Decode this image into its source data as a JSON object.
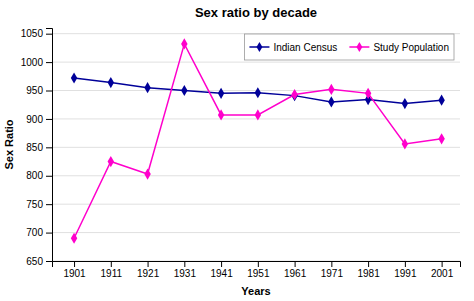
{
  "chart_data": {
    "type": "line",
    "title": "Sex ratio by decade",
    "xlabel": "Years",
    "ylabel": "Sex Ratio",
    "x": [
      1901,
      1911,
      1921,
      1931,
      1941,
      1951,
      1961,
      1971,
      1981,
      1991,
      2001
    ],
    "series": [
      {
        "name": "Indian Census",
        "color": "#000099",
        "marker": "diamond",
        "line_style": "solid",
        "values": [
          972,
          964,
          955,
          950,
          945,
          946,
          941,
          930,
          934,
          927,
          933
        ]
      },
      {
        "name": "Study Population",
        "color": "#FF00CC",
        "marker": "diamond",
        "line_style": "solid",
        "values": [
          690,
          825,
          803,
          1032,
          907,
          907,
          943,
          952,
          945,
          856,
          865
        ]
      }
    ],
    "xlim": [
      1895,
      2006
    ],
    "xticks": [
      1901,
      1911,
      1921,
      1931,
      1941,
      1951,
      1961,
      1971,
      1981,
      1991,
      2001
    ],
    "ylim": [
      650,
      1060
    ],
    "yticks": [
      650,
      700,
      750,
      800,
      850,
      900,
      950,
      1000,
      1050
    ],
    "grid": "y",
    "legend": "upper right"
  }
}
